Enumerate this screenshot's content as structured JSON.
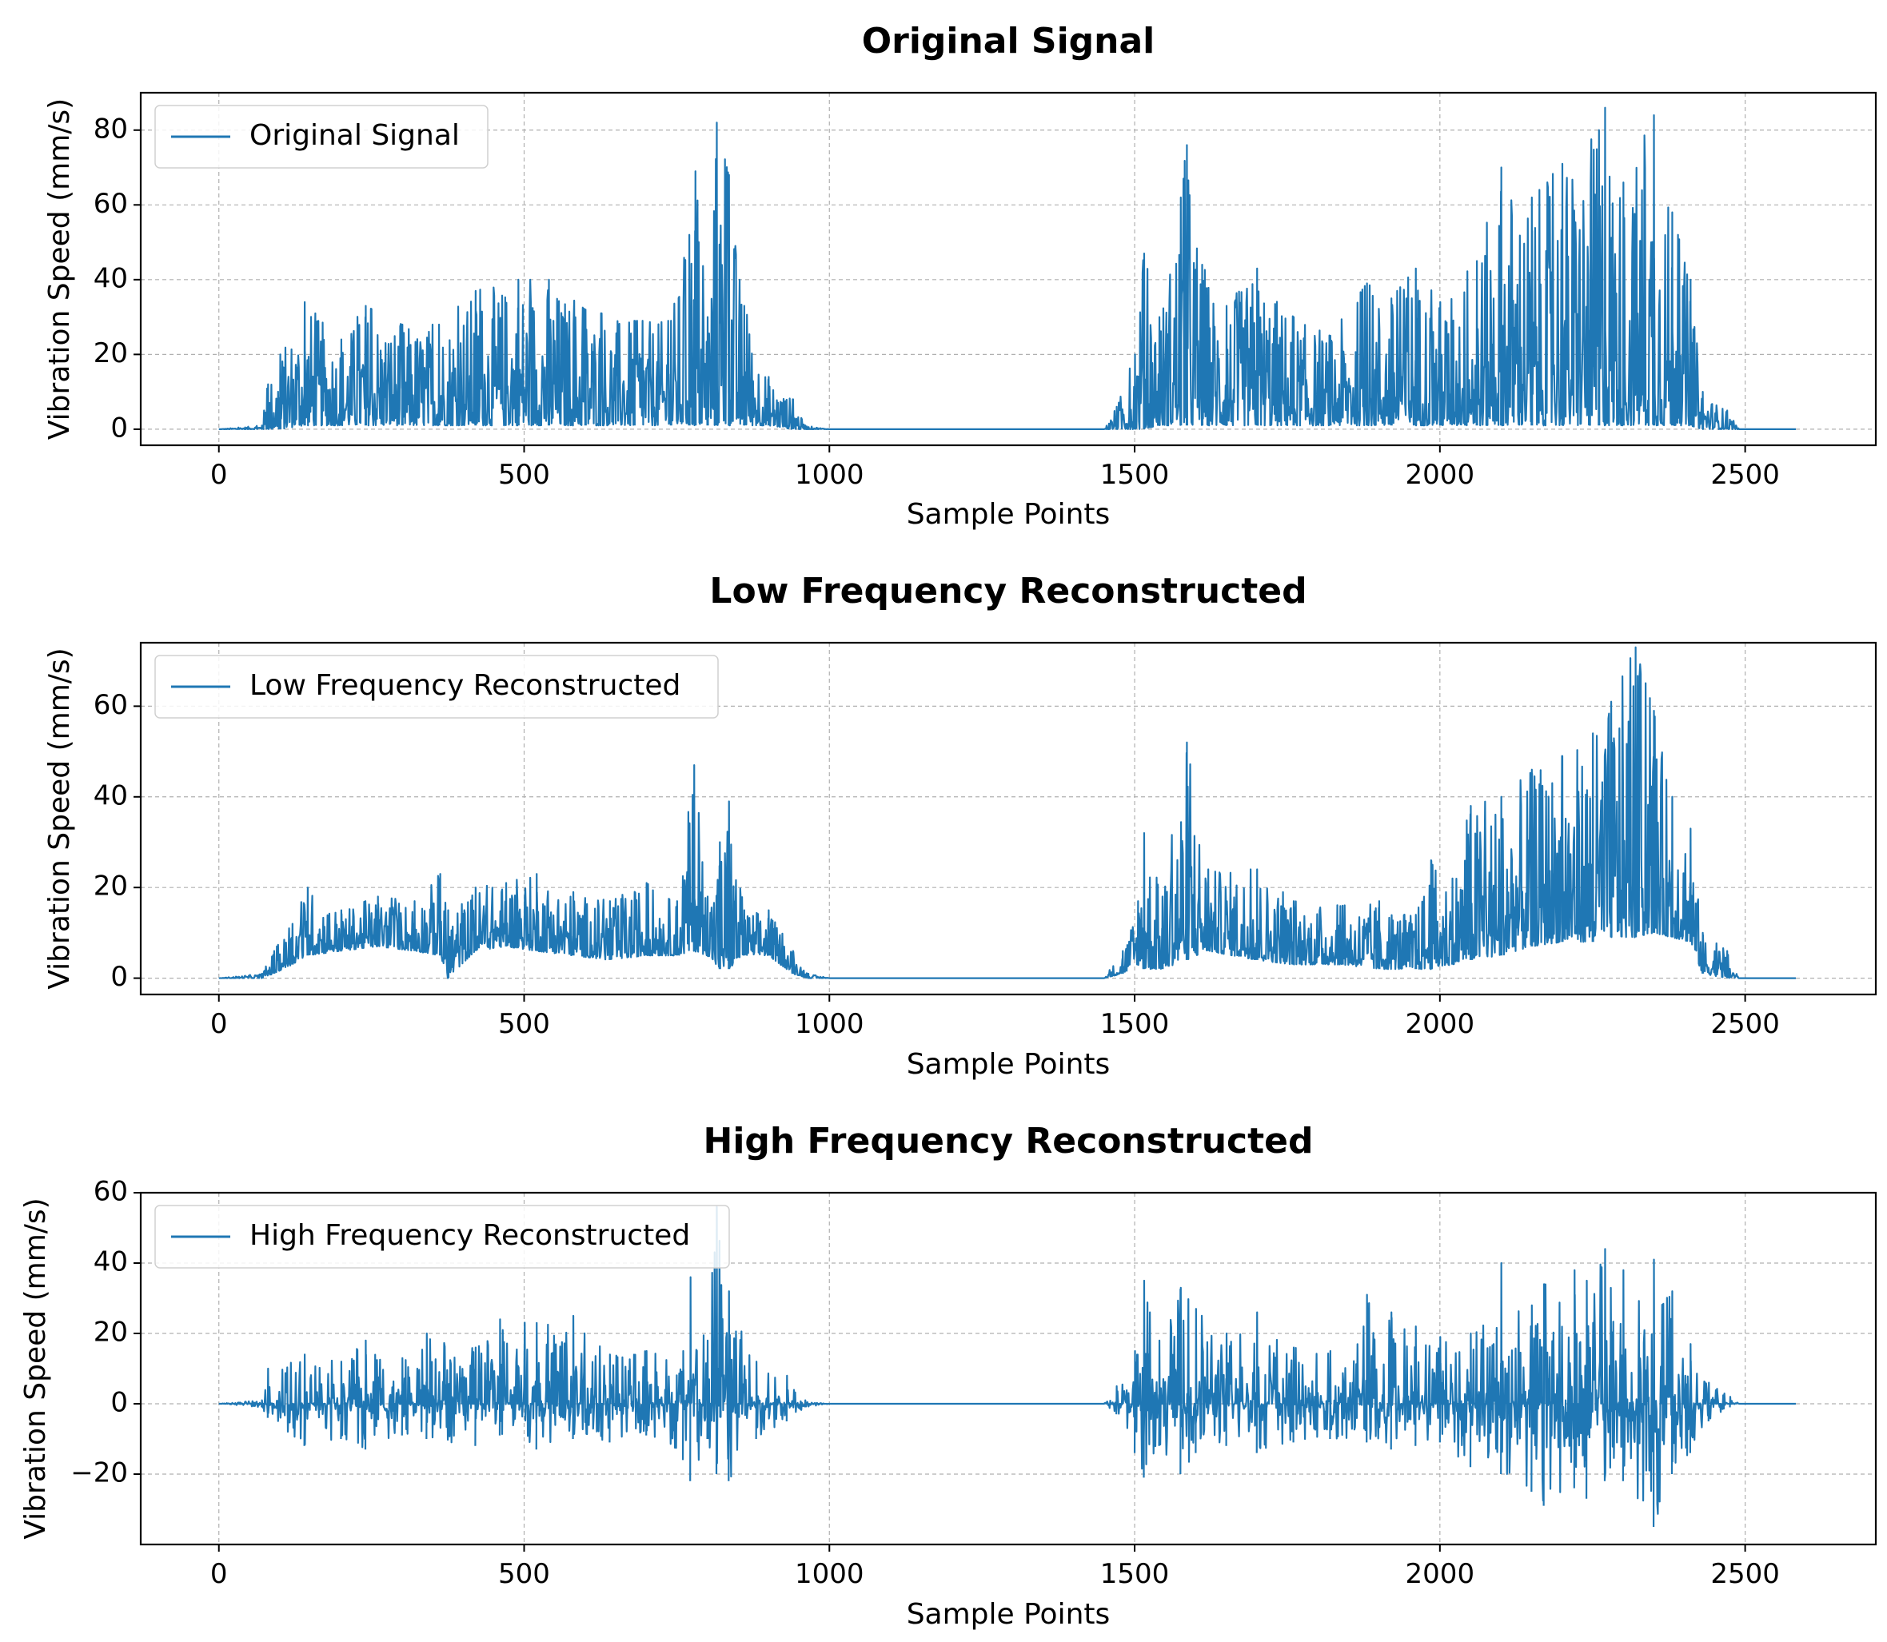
{
  "chart_data": [
    {
      "type": "line",
      "title": "Original Signal",
      "xlabel": "Sample Points",
      "ylabel": "Vibration Speed (mm/s)",
      "xlim": [
        -128,
        2714
      ],
      "ylim": [
        -4.3,
        90
      ],
      "xticks": [
        0,
        500,
        1000,
        1500,
        2000,
        2500
      ],
      "xtick_labels": [
        "0",
        "500",
        "1000",
        "1500",
        "2000",
        "2500"
      ],
      "yticks": [
        0,
        20,
        40,
        60,
        80
      ],
      "ytick_labels": [
        "0",
        "20",
        "40",
        "60",
        "80"
      ],
      "grid": true,
      "legend": {
        "position": "top-left",
        "entries": [
          "Original Signal"
        ]
      },
      "series": [
        {
          "name": "Original Signal",
          "color": "#1f77b4",
          "n": 2584,
          "envelope": [
            {
              "x": 0,
              "min": 0,
              "max": 0
            },
            {
              "x": 70,
              "min": 0,
              "max": 1
            },
            {
              "x": 80,
              "min": 0,
              "max": 12
            },
            {
              "x": 100,
              "min": 0,
              "max": 20
            },
            {
              "x": 140,
              "min": 1,
              "max": 34
            },
            {
              "x": 200,
              "min": 1,
              "max": 24
            },
            {
              "x": 240,
              "min": 1,
              "max": 33
            },
            {
              "x": 300,
              "min": 1,
              "max": 28
            },
            {
              "x": 360,
              "min": 1,
              "max": 28
            },
            {
              "x": 420,
              "min": 1,
              "max": 37
            },
            {
              "x": 490,
              "min": 1,
              "max": 40
            },
            {
              "x": 540,
              "min": 1,
              "max": 40
            },
            {
              "x": 600,
              "min": 1,
              "max": 32
            },
            {
              "x": 680,
              "min": 1,
              "max": 29
            },
            {
              "x": 740,
              "min": 1,
              "max": 29
            },
            {
              "x": 770,
              "min": 1,
              "max": 52
            },
            {
              "x": 780,
              "min": 1,
              "max": 69
            },
            {
              "x": 800,
              "min": 1,
              "max": 30
            },
            {
              "x": 815,
              "min": 1,
              "max": 82
            },
            {
              "x": 835,
              "min": 1,
              "max": 68
            },
            {
              "x": 860,
              "min": 1,
              "max": 33
            },
            {
              "x": 900,
              "min": 1,
              "max": 14
            },
            {
              "x": 940,
              "min": 0,
              "max": 8
            },
            {
              "x": 960,
              "min": 0,
              "max": 1
            },
            {
              "x": 1000,
              "min": 0,
              "max": 0
            },
            {
              "x": 1450,
              "min": 0,
              "max": 0
            },
            {
              "x": 1470,
              "min": 0,
              "max": 6
            },
            {
              "x": 1500,
              "min": 0,
              "max": 20
            },
            {
              "x": 1515,
              "min": 0,
              "max": 47
            },
            {
              "x": 1540,
              "min": 1,
              "max": 30
            },
            {
              "x": 1575,
              "min": 1,
              "max": 62
            },
            {
              "x": 1585,
              "min": 1,
              "max": 76
            },
            {
              "x": 1610,
              "min": 1,
              "max": 44
            },
            {
              "x": 1650,
              "min": 1,
              "max": 33
            },
            {
              "x": 1700,
              "min": 1,
              "max": 43
            },
            {
              "x": 1760,
              "min": 1,
              "max": 30
            },
            {
              "x": 1820,
              "min": 1,
              "max": 25
            },
            {
              "x": 1880,
              "min": 1,
              "max": 39
            },
            {
              "x": 1920,
              "min": 1,
              "max": 35
            },
            {
              "x": 1960,
              "min": 1,
              "max": 43
            },
            {
              "x": 2000,
              "min": 1,
              "max": 34
            },
            {
              "x": 2060,
              "min": 1,
              "max": 45
            },
            {
              "x": 2100,
              "min": 1,
              "max": 70
            },
            {
              "x": 2150,
              "min": 1,
              "max": 62
            },
            {
              "x": 2200,
              "min": 1,
              "max": 71
            },
            {
              "x": 2260,
              "min": 1,
              "max": 80
            },
            {
              "x": 2270,
              "min": 1,
              "max": 86
            },
            {
              "x": 2300,
              "min": 1,
              "max": 66
            },
            {
              "x": 2350,
              "min": 1,
              "max": 84
            },
            {
              "x": 2380,
              "min": 1,
              "max": 58
            },
            {
              "x": 2410,
              "min": 1,
              "max": 40
            },
            {
              "x": 2430,
              "min": 0,
              "max": 10
            },
            {
              "x": 2470,
              "min": 0,
              "max": 5
            },
            {
              "x": 2490,
              "min": 0,
              "max": 0
            },
            {
              "x": 2584,
              "min": 0,
              "max": 0
            }
          ]
        }
      ]
    },
    {
      "type": "line",
      "title": "Low Frequency Reconstructed",
      "xlabel": "Sample Points",
      "ylabel": "Vibration Speed (mm/s)",
      "xlim": [
        -128,
        2714
      ],
      "ylim": [
        -3.6,
        74
      ],
      "xticks": [
        0,
        500,
        1000,
        1500,
        2000,
        2500
      ],
      "xtick_labels": [
        "0",
        "500",
        "1000",
        "1500",
        "2000",
        "2500"
      ],
      "yticks": [
        0,
        20,
        40,
        60
      ],
      "ytick_labels": [
        "0",
        "20",
        "40",
        "60"
      ],
      "grid": true,
      "legend": {
        "position": "top-left",
        "entries": [
          "Low Frequency Reconstructed"
        ]
      },
      "series": [
        {
          "name": "Low Frequency Reconstructed",
          "color": "#1f77b4",
          "n": 2584,
          "envelope": [
            {
              "x": 0,
              "min": 0,
              "max": 0
            },
            {
              "x": 70,
              "min": 0,
              "max": 1
            },
            {
              "x": 90,
              "min": 1,
              "max": 6
            },
            {
              "x": 120,
              "min": 3,
              "max": 12
            },
            {
              "x": 145,
              "min": 5,
              "max": 20
            },
            {
              "x": 200,
              "min": 6,
              "max": 15
            },
            {
              "x": 260,
              "min": 7,
              "max": 18
            },
            {
              "x": 320,
              "min": 6,
              "max": 17
            },
            {
              "x": 362,
              "min": 5,
              "max": 23
            },
            {
              "x": 375,
              "min": 0,
              "max": 15
            },
            {
              "x": 420,
              "min": 6,
              "max": 20
            },
            {
              "x": 470,
              "min": 7,
              "max": 21
            },
            {
              "x": 520,
              "min": 6,
              "max": 23
            },
            {
              "x": 580,
              "min": 5,
              "max": 19
            },
            {
              "x": 640,
              "min": 4,
              "max": 17
            },
            {
              "x": 700,
              "min": 5,
              "max": 21
            },
            {
              "x": 750,
              "min": 5,
              "max": 17
            },
            {
              "x": 778,
              "min": 6,
              "max": 47
            },
            {
              "x": 800,
              "min": 5,
              "max": 18
            },
            {
              "x": 820,
              "min": 2,
              "max": 30
            },
            {
              "x": 835,
              "min": 2,
              "max": 39
            },
            {
              "x": 860,
              "min": 5,
              "max": 15
            },
            {
              "x": 900,
              "min": 5,
              "max": 15
            },
            {
              "x": 940,
              "min": 1,
              "max": 6
            },
            {
              "x": 965,
              "min": 0,
              "max": 1
            },
            {
              "x": 1000,
              "min": 0,
              "max": 0
            },
            {
              "x": 1450,
              "min": 0,
              "max": 0
            },
            {
              "x": 1480,
              "min": 1,
              "max": 6
            },
            {
              "x": 1505,
              "min": 3,
              "max": 17
            },
            {
              "x": 1515,
              "min": 2,
              "max": 32
            },
            {
              "x": 1545,
              "min": 2,
              "max": 18
            },
            {
              "x": 1585,
              "min": 4,
              "max": 52
            },
            {
              "x": 1620,
              "min": 6,
              "max": 24
            },
            {
              "x": 1700,
              "min": 4,
              "max": 24
            },
            {
              "x": 1760,
              "min": 3,
              "max": 17
            },
            {
              "x": 1840,
              "min": 3,
              "max": 16
            },
            {
              "x": 1900,
              "min": 2,
              "max": 17
            },
            {
              "x": 1960,
              "min": 2,
              "max": 14
            },
            {
              "x": 1985,
              "min": 2,
              "max": 26
            },
            {
              "x": 2020,
              "min": 3,
              "max": 22
            },
            {
              "x": 2050,
              "min": 4,
              "max": 38
            },
            {
              "x": 2100,
              "min": 5,
              "max": 40
            },
            {
              "x": 2150,
              "min": 7,
              "max": 46
            },
            {
              "x": 2200,
              "min": 8,
              "max": 49
            },
            {
              "x": 2250,
              "min": 8,
              "max": 54
            },
            {
              "x": 2280,
              "min": 9,
              "max": 61
            },
            {
              "x": 2320,
              "min": 9,
              "max": 73
            },
            {
              "x": 2350,
              "min": 10,
              "max": 59
            },
            {
              "x": 2380,
              "min": 9,
              "max": 40
            },
            {
              "x": 2410,
              "min": 8,
              "max": 33
            },
            {
              "x": 2430,
              "min": 1,
              "max": 10
            },
            {
              "x": 2470,
              "min": 0,
              "max": 6
            },
            {
              "x": 2490,
              "min": 0,
              "max": 0
            },
            {
              "x": 2584,
              "min": 0,
              "max": 0
            }
          ]
        }
      ]
    },
    {
      "type": "line",
      "title": "High Frequency Reconstructed",
      "xlabel": "Sample Points",
      "ylabel": "Vibration Speed (mm/s)",
      "xlim": [
        -128,
        2714
      ],
      "ylim": [
        -40,
        60
      ],
      "xticks": [
        0,
        500,
        1000,
        1500,
        2000,
        2500
      ],
      "xtick_labels": [
        "0",
        "500",
        "1000",
        "1500",
        "2000",
        "2500"
      ],
      "yticks": [
        -20,
        0,
        20,
        40,
        60
      ],
      "ytick_labels": [
        "−20",
        "0",
        "20",
        "40",
        "60"
      ],
      "grid": true,
      "legend": {
        "position": "top-left",
        "entries": [
          "High Frequency Reconstructed"
        ]
      },
      "series": [
        {
          "name": "High Frequency Reconstructed",
          "color": "#1f77b4",
          "n": 2584,
          "envelope": [
            {
              "x": 0,
              "min": 0,
              "max": 0
            },
            {
              "x": 70,
              "min": -1,
              "max": 1
            },
            {
              "x": 80,
              "min": -4,
              "max": 10
            },
            {
              "x": 140,
              "min": -12,
              "max": 14
            },
            {
              "x": 200,
              "min": -10,
              "max": 12
            },
            {
              "x": 240,
              "min": -13,
              "max": 18
            },
            {
              "x": 300,
              "min": -9,
              "max": 13
            },
            {
              "x": 340,
              "min": -10,
              "max": 20
            },
            {
              "x": 420,
              "min": -12,
              "max": 16
            },
            {
              "x": 460,
              "min": -9,
              "max": 24
            },
            {
              "x": 520,
              "min": -13,
              "max": 23
            },
            {
              "x": 580,
              "min": -10,
              "max": 25
            },
            {
              "x": 640,
              "min": -11,
              "max": 14
            },
            {
              "x": 700,
              "min": -9,
              "max": 15
            },
            {
              "x": 760,
              "min": -16,
              "max": 15
            },
            {
              "x": 772,
              "min": -22,
              "max": 36
            },
            {
              "x": 800,
              "min": -10,
              "max": 18
            },
            {
              "x": 815,
              "min": -20,
              "max": 56
            },
            {
              "x": 835,
              "min": -22,
              "max": 32
            },
            {
              "x": 880,
              "min": -10,
              "max": 12
            },
            {
              "x": 930,
              "min": -5,
              "max": 8
            },
            {
              "x": 960,
              "min": -1,
              "max": 1
            },
            {
              "x": 1000,
              "min": 0,
              "max": 0
            },
            {
              "x": 1450,
              "min": 0,
              "max": 0
            },
            {
              "x": 1470,
              "min": -3,
              "max": 5
            },
            {
              "x": 1500,
              "min": -14,
              "max": 15
            },
            {
              "x": 1515,
              "min": -21,
              "max": 35
            },
            {
              "x": 1540,
              "min": -12,
              "max": 18
            },
            {
              "x": 1575,
              "min": -20,
              "max": 33
            },
            {
              "x": 1600,
              "min": -14,
              "max": 27
            },
            {
              "x": 1650,
              "min": -12,
              "max": 20
            },
            {
              "x": 1700,
              "min": -14,
              "max": 26
            },
            {
              "x": 1760,
              "min": -11,
              "max": 16
            },
            {
              "x": 1820,
              "min": -10,
              "max": 15
            },
            {
              "x": 1880,
              "min": -11,
              "max": 31
            },
            {
              "x": 1920,
              "min": -13,
              "max": 26
            },
            {
              "x": 1960,
              "min": -12,
              "max": 22
            },
            {
              "x": 2000,
              "min": -11,
              "max": 19
            },
            {
              "x": 2050,
              "min": -18,
              "max": 20
            },
            {
              "x": 2100,
              "min": -20,
              "max": 40
            },
            {
              "x": 2150,
              "min": -25,
              "max": 28
            },
            {
              "x": 2170,
              "min": -29,
              "max": 34
            },
            {
              "x": 2220,
              "min": -24,
              "max": 38
            },
            {
              "x": 2240,
              "min": -27,
              "max": 35
            },
            {
              "x": 2270,
              "min": -22,
              "max": 44
            },
            {
              "x": 2300,
              "min": -22,
              "max": 38
            },
            {
              "x": 2350,
              "min": -35,
              "max": 41
            },
            {
              "x": 2380,
              "min": -20,
              "max": 32
            },
            {
              "x": 2410,
              "min": -14,
              "max": 17
            },
            {
              "x": 2440,
              "min": -5,
              "max": 6
            },
            {
              "x": 2475,
              "min": -1,
              "max": 2
            },
            {
              "x": 2490,
              "min": 0,
              "max": 0
            },
            {
              "x": 2584,
              "min": 0,
              "max": 0
            }
          ]
        }
      ]
    }
  ]
}
